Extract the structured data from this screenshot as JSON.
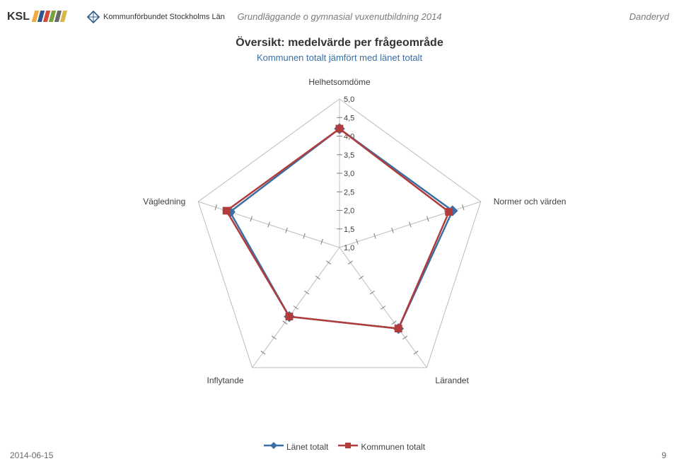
{
  "header": {
    "doc_title": "Grundläggande o gymnasial vuxenutbildning 2014",
    "region": "Danderyd",
    "logo_text_main": "KSL",
    "logo_text_sub": "Kommunförbundet Stockholms Län",
    "logo_bar_colors": [
      "#f4a93c",
      "#2e5a8a",
      "#d14a3c",
      "#7aa23c",
      "#6a6a6a",
      "#d9b84a"
    ]
  },
  "chart": {
    "type": "radar",
    "title": "Översikt: medelvärde per frågeområde",
    "subtitle": "Kommunen totalt jämfört med länet totalt",
    "title_fontsize": 16,
    "subtitle_fontsize": 13,
    "subtitle_color": "#3a6ea5",
    "background_color": "#ffffff",
    "grid_color": "#bcbcbc",
    "axes": [
      "Helhetsomdöme",
      "Normer och värden",
      "Lärandet",
      "Inflytande",
      "Vägledning"
    ],
    "scale_min": 1.0,
    "scale_max": 5.0,
    "scale_step": 0.5,
    "tick_labels": [
      "5,0",
      "4,5",
      "4,0",
      "3,5",
      "3,0",
      "2,5",
      "2,0",
      "1,5",
      "1,0"
    ],
    "series": [
      {
        "name": "Länet totalt",
        "color": "#3a6ea5",
        "values": [
          4.2,
          4.2,
          3.7,
          3.3,
          4.1
        ],
        "line_width": 2.5,
        "marker": "diamond",
        "marker_size": 7
      },
      {
        "name": "Kommunen totalt",
        "color": "#b23c3c",
        "values": [
          4.2,
          4.1,
          3.7,
          3.3,
          4.2
        ],
        "line_width": 2.5,
        "marker": "square",
        "marker_size": 7
      }
    ],
    "label_fontsize": 12,
    "tick_fontsize": 11
  },
  "legend": {
    "items": [
      {
        "label": "Länet totalt",
        "color": "#3a6ea5",
        "marker": "diamond"
      },
      {
        "label": "Kommunen totalt",
        "color": "#b23c3c",
        "marker": "square"
      }
    ]
  },
  "footer": {
    "date": "2014-06-15",
    "page": "9"
  }
}
